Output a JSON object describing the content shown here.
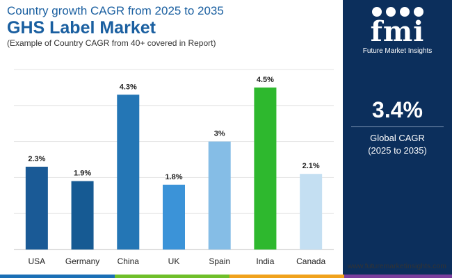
{
  "header": {
    "title": "Country growth CAGR from 2025 to 2035",
    "market": "GHS Label Market",
    "subtitle": "(Example of Country CAGR from 40+ covered in Report)"
  },
  "chart_data": {
    "type": "bar",
    "categories": [
      "USA",
      "Germany",
      "China",
      "UK",
      "Spain",
      "India",
      "Canada"
    ],
    "values": [
      2.3,
      1.9,
      4.3,
      1.8,
      3.0,
      4.5,
      2.1
    ],
    "labels": [
      "2.3%",
      "1.9%",
      "4.3%",
      "1.8%",
      "3%",
      "4.5%",
      "2.1%"
    ],
    "colors": [
      "#1a5a96",
      "#165a93",
      "#2476b5",
      "#3b93d8",
      "#85bde6",
      "#2eb82e",
      "#c4dff2"
    ],
    "ylim": [
      0,
      5
    ],
    "grid": true,
    "title": "Country growth CAGR from 2025 to 2035",
    "xlabel": "",
    "ylabel": ""
  },
  "sidebar": {
    "logo_text": "fmi",
    "logo_subtitle": "Future Market Insights",
    "global_value": "3.4%",
    "global_label": "Global CAGR",
    "global_period": "(2025 to 2035)"
  },
  "footer": {
    "website": "www.futuremarketinsights.com",
    "bar_colors": [
      "#1a6fb5",
      "#6fbf2a",
      "#f0a21c",
      "#7a3e9d"
    ]
  }
}
